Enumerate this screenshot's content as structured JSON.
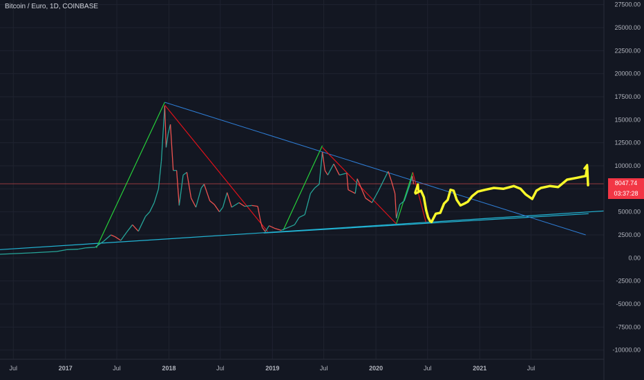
{
  "header": {
    "title": "Bitcoin / Euro, 1D, COINBASE"
  },
  "price": {
    "last": "8047.74",
    "countdown": "03:37:28",
    "color": "#f23645"
  },
  "colors": {
    "background": "#131722",
    "grid": "#1f2330",
    "axis_text": "#b2b5be",
    "candle_up": "#26a69a",
    "candle_down": "#ef5350",
    "rise_line": "#26d03a",
    "fall_line": "#e0121a",
    "resistance": "#2f7fd8",
    "support": "#22b5d5",
    "drawing": "#f9f92a"
  },
  "chart_data": {
    "type": "line",
    "instrument": "Bitcoin / Euro",
    "interval": "1D",
    "exchange": "COINBASE",
    "ylim": [
      -11000,
      28000
    ],
    "y_ticks": [
      27500,
      25000,
      22500,
      20000,
      17500,
      15000,
      12500,
      10000,
      7500,
      5000,
      2500,
      0,
      -2500,
      -5000,
      -7500,
      -10000
    ],
    "y_tick_labels": [
      "27500.00",
      "25000.00",
      "22500.00",
      "20000.00",
      "17500.00",
      "15000.00",
      "12500.00",
      "10000.00",
      "7500.00",
      "5000.00",
      "2500.00",
      "0.00",
      "-2500.00",
      "-5000.00",
      "-7500.00",
      "-10000.00"
    ],
    "xlim": [
      "2016-05-15",
      "2022-03-15"
    ],
    "x_ticks": [
      {
        "date": "2016-07-01",
        "label": "Jul",
        "year": false
      },
      {
        "date": "2017-01-01",
        "label": "2017",
        "year": true
      },
      {
        "date": "2017-07-01",
        "label": "Jul",
        "year": false
      },
      {
        "date": "2018-01-01",
        "label": "2018",
        "year": true
      },
      {
        "date": "2018-07-01",
        "label": "Jul",
        "year": false
      },
      {
        "date": "2019-01-01",
        "label": "2019",
        "year": true
      },
      {
        "date": "2019-07-01",
        "label": "Jul",
        "year": false
      },
      {
        "date": "2020-01-01",
        "label": "2020",
        "year": true
      },
      {
        "date": "2020-07-01",
        "label": "Jul",
        "year": false
      },
      {
        "date": "2021-01-01",
        "label": "2021",
        "year": true
      },
      {
        "date": "2021-07-01",
        "label": "Jul",
        "year": false
      }
    ],
    "grid": true,
    "series": [
      {
        "values": [
          [
            "2016-05-15",
            400
          ],
          [
            "2016-09-01",
            550
          ],
          [
            "2016-12-01",
            700
          ],
          [
            "2017-01-05",
            900
          ],
          [
            "2017-02-15",
            950
          ],
          [
            "2017-03-15",
            1100
          ],
          [
            "2017-04-15",
            1150
          ],
          [
            "2017-05-15",
            1800
          ],
          [
            "2017-06-10",
            2500
          ],
          [
            "2017-06-25",
            2300
          ],
          [
            "2017-07-15",
            1900
          ],
          [
            "2017-08-05",
            2800
          ],
          [
            "2017-08-25",
            3600
          ],
          [
            "2017-09-15",
            2900
          ],
          [
            "2017-10-10",
            4500
          ],
          [
            "2017-10-25",
            5000
          ],
          [
            "2017-11-10",
            6000
          ],
          [
            "2017-11-25",
            7500
          ],
          [
            "2017-12-05",
            10500
          ],
          [
            "2017-12-10",
            13000
          ],
          [
            "2017-12-17",
            16500
          ],
          [
            "2017-12-22",
            12000
          ],
          [
            "2017-12-29",
            13500
          ],
          [
            "2018-01-06",
            14500
          ],
          [
            "2018-01-16",
            9500
          ],
          [
            "2018-01-28",
            9500
          ],
          [
            "2018-02-06",
            5700
          ],
          [
            "2018-02-20",
            9000
          ],
          [
            "2018-03-05",
            9300
          ],
          [
            "2018-03-20",
            6500
          ],
          [
            "2018-04-06",
            5500
          ],
          [
            "2018-04-25",
            7600
          ],
          [
            "2018-05-05",
            8000
          ],
          [
            "2018-05-25",
            6200
          ],
          [
            "2018-06-10",
            5800
          ],
          [
            "2018-06-28",
            5000
          ],
          [
            "2018-07-10",
            5500
          ],
          [
            "2018-07-25",
            7100
          ],
          [
            "2018-08-10",
            5500
          ],
          [
            "2018-09-05",
            6000
          ],
          [
            "2018-09-25",
            5600
          ],
          [
            "2018-10-20",
            5700
          ],
          [
            "2018-11-10",
            5600
          ],
          [
            "2018-11-20",
            4000
          ],
          [
            "2018-11-26",
            3300
          ],
          [
            "2018-12-07",
            2850
          ],
          [
            "2018-12-20",
            3500
          ],
          [
            "2019-01-10",
            3200
          ],
          [
            "2019-02-01",
            3000
          ],
          [
            "2019-02-25",
            3300
          ],
          [
            "2019-03-20",
            3600
          ],
          [
            "2019-04-05",
            4400
          ],
          [
            "2019-04-25",
            4700
          ],
          [
            "2019-05-15",
            7000
          ],
          [
            "2019-05-30",
            7600
          ],
          [
            "2019-06-15",
            8000
          ],
          [
            "2019-06-26",
            11500
          ],
          [
            "2019-07-05",
            9500
          ],
          [
            "2019-07-15",
            9000
          ],
          [
            "2019-08-05",
            10200
          ],
          [
            "2019-08-25",
            9000
          ],
          [
            "2019-09-20",
            9200
          ],
          [
            "2019-09-25",
            7400
          ],
          [
            "2019-10-20",
            7000
          ],
          [
            "2019-10-27",
            8600
          ],
          [
            "2019-11-25",
            6500
          ],
          [
            "2019-12-18",
            6000
          ],
          [
            "2020-01-10",
            7300
          ],
          [
            "2020-02-13",
            9400
          ],
          [
            "2020-02-25",
            8300
          ],
          [
            "2020-03-08",
            7000
          ],
          [
            "2020-03-13",
            4300
          ],
          [
            "2020-03-25",
            5800
          ],
          [
            "2020-04-10",
            6200
          ],
          [
            "2020-04-29",
            7900
          ],
          [
            "2020-05-08",
            8900
          ],
          [
            "2020-05-13",
            8000
          ]
        ]
      }
    ],
    "annotations": {
      "rise_lines": [
        [
          [
            "2017-04-20",
            1100
          ],
          [
            "2017-12-17",
            16900
          ]
        ],
        [
          [
            "2019-02-08",
            3000
          ],
          [
            "2019-06-26",
            12200
          ]
        ],
        [
          [
            "2020-03-13",
            3700
          ],
          [
            "2020-05-10",
            9300
          ]
        ]
      ],
      "fall_lines": [
        [
          [
            "2017-12-17",
            16600
          ],
          [
            "2018-12-15",
            2850
          ]
        ],
        [
          [
            "2019-06-26",
            12000
          ],
          [
            "2020-03-13",
            3700
          ]
        ],
        [
          [
            "2020-05-10",
            9300
          ],
          [
            "2020-06-25",
            3900
          ]
        ]
      ],
      "resistance_line": [
        [
          "2017-12-17",
          16900
        ],
        [
          "2022-01-10",
          2500
        ]
      ],
      "support_lines": [
        [
          [
            "2016-05-15",
            900
          ],
          [
            "2022-03-15",
            5100
          ]
        ],
        [
          [
            "2018-12-01",
            2700
          ],
          [
            "2022-01-20",
            4800
          ]
        ]
      ],
      "price_line": 8047.74,
      "forecast_path": [
        [
          "2020-05-20",
          7000
        ],
        [
          "2020-06-08",
          7300
        ],
        [
          "2020-06-18",
          6600
        ],
        [
          "2020-06-26",
          5200
        ],
        [
          "2020-07-03",
          4400
        ],
        [
          "2020-07-10",
          4000
        ],
        [
          "2020-07-15",
          3900
        ],
        [
          "2020-07-30",
          4800
        ],
        [
          "2020-08-15",
          4900
        ],
        [
          "2020-08-28",
          5900
        ],
        [
          "2020-09-10",
          6300
        ],
        [
          "2020-09-20",
          7400
        ],
        [
          "2020-10-01",
          7300
        ],
        [
          "2020-10-12",
          6300
        ],
        [
          "2020-10-25",
          5700
        ],
        [
          "2020-11-08",
          5900
        ],
        [
          "2020-11-20",
          6100
        ],
        [
          "2020-12-05",
          6700
        ],
        [
          "2020-12-25",
          7200
        ],
        [
          "2021-01-20",
          7400
        ],
        [
          "2021-02-20",
          7600
        ],
        [
          "2021-03-25",
          7500
        ],
        [
          "2021-05-01",
          7800
        ],
        [
          "2021-05-25",
          7500
        ],
        [
          "2021-06-12",
          6900
        ],
        [
          "2021-07-05",
          6400
        ],
        [
          "2021-07-20",
          7300
        ],
        [
          "2021-08-05",
          7600
        ],
        [
          "2021-09-05",
          7800
        ],
        [
          "2021-10-05",
          7700
        ],
        [
          "2021-11-05",
          8500
        ],
        [
          "2021-12-10",
          8700
        ],
        [
          "2022-01-10",
          8900
        ],
        [
          "2022-01-15",
          9900
        ],
        [
          "2022-01-18",
          7900
        ]
      ],
      "forecast_arrowhead": [
        [
          "2022-01-05",
          9700
        ],
        [
          "2022-01-15",
          10100
        ],
        [
          "2022-01-14",
          9300
        ]
      ],
      "pullback_stroke": [
        [
          "2020-05-18",
          7100
        ],
        [
          "2020-05-28",
          8000
        ],
        [
          "2020-05-30",
          7300
        ]
      ]
    }
  }
}
